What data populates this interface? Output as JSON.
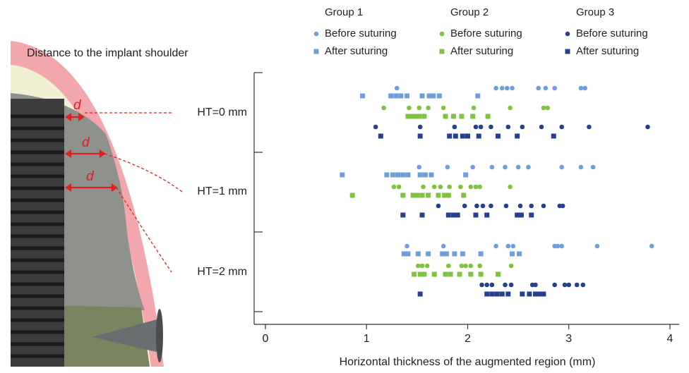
{
  "chart_data": {
    "type": "dot",
    "annotation": "Distance to the implant shoulder",
    "dimension_label": "d",
    "xlabel": "Horizontal thickness of the augmented region (mm)",
    "xlim": [
      0,
      4
    ],
    "xticks": [
      0,
      1,
      2,
      3,
      4
    ],
    "categories": [
      "HT=0 mm",
      "HT=1 mm",
      "HT=2 mm"
    ],
    "groups": [
      {
        "name": "Group 1",
        "series": [
          {
            "name": "Before suturing",
            "color": "#6f9fd8",
            "marker": "circle",
            "values": [
              [
                1.3,
                2.28,
                2.34,
                2.39,
                2.44,
                2.7,
                2.77,
                2.86,
                3.12,
                3.16
              ],
              [
                1.52,
                1.8,
                2.05,
                2.24,
                2.37,
                2.5,
                2.6,
                2.93,
                3.12,
                3.24
              ],
              [
                1.4,
                1.76,
                2.28,
                2.4,
                2.45,
                2.86,
                2.89,
                2.93,
                3.28,
                3.82
              ]
            ]
          },
          {
            "name": "After suturing",
            "color": "#6f9fd8",
            "marker": "square",
            "values": [
              [
                0.96,
                1.24,
                1.29,
                1.34,
                1.4,
                1.55,
                1.62,
                1.66,
                1.72,
                2.1
              ],
              [
                0.76,
                1.2,
                1.26,
                1.31,
                1.36,
                1.41,
                1.53,
                1.58,
                1.64,
                1.98
              ],
              [
                1.37,
                1.41,
                1.51,
                1.61,
                1.75,
                1.79,
                1.87,
                1.95,
                2.13,
                2.44,
                2.51
              ]
            ]
          }
        ]
      },
      {
        "name": "Group 2",
        "series": [
          {
            "name": "Before suturing",
            "color": "#80c342",
            "marker": "circle",
            "values": [
              [
                1.17,
                1.42,
                1.52,
                1.61,
                1.76,
                2.06,
                2.42,
                2.75,
                2.79
              ],
              [
                1.27,
                1.32,
                1.56,
                1.67,
                1.73,
                1.82,
                1.93,
                2.03,
                2.08,
                2.12,
                2.42
              ],
              [
                1.51,
                1.55,
                1.6,
                1.81,
                1.94,
                1.98,
                2.03,
                2.12,
                2.43
              ]
            ]
          },
          {
            "name": "After suturing",
            "color": "#80c342",
            "marker": "square",
            "values": [
              [
                1.41,
                1.44,
                1.48,
                1.52,
                1.57,
                1.78,
                1.86,
                1.94,
                2.05,
                2.2
              ],
              [
                0.86,
                1.36,
                1.46,
                1.5,
                1.55,
                1.61,
                1.71,
                1.77,
                1.81,
                1.96
              ],
              [
                1.47,
                1.53,
                1.57,
                1.67,
                1.78,
                1.83,
                1.92,
                2.03,
                2.13,
                2.3
              ]
            ]
          }
        ]
      },
      {
        "name": "Group 3",
        "series": [
          {
            "name": "Before suturing",
            "color": "#26408f",
            "marker": "circle",
            "values": [
              [
                1.09,
                1.53,
                1.87,
                2.08,
                2.13,
                2.23,
                2.4,
                2.54,
                2.73,
                2.93,
                3.2,
                3.78
              ],
              [
                1.71,
                1.97,
                2.09,
                2.15,
                2.23,
                2.38,
                2.52,
                2.63,
                2.75,
                2.91,
                2.94
              ],
              [
                2.14,
                2.19,
                2.24,
                2.37,
                2.43,
                2.64,
                2.67,
                2.86,
                2.96,
                3.0,
                3.08,
                3.14
              ]
            ]
          },
          {
            "name": "After suturing",
            "color": "#26408f",
            "marker": "square",
            "values": [
              [
                1.14,
                1.53,
                1.82,
                1.88,
                1.95,
                2.0,
                2.11,
                2.3,
                2.49,
                2.85
              ],
              [
                1.36,
                1.55,
                1.81,
                1.86,
                1.9,
                2.08,
                2.19,
                2.49,
                2.53,
                2.63
              ],
              [
                1.53,
                2.19,
                2.24,
                2.29,
                2.34,
                2.4,
                2.54,
                2.61,
                2.67,
                2.71,
                2.75
              ]
            ]
          }
        ]
      }
    ]
  }
}
